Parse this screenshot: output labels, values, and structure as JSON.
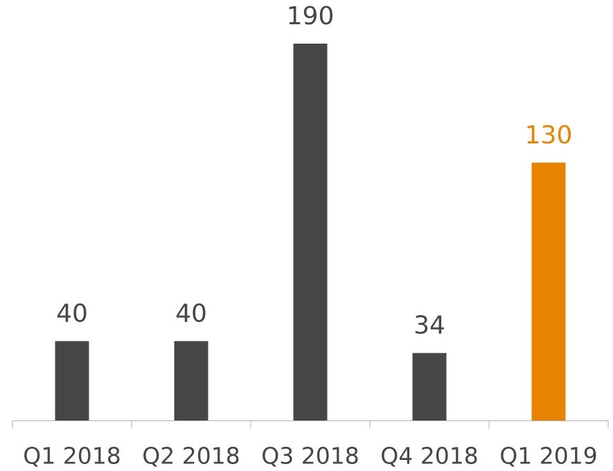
{
  "chart_data": {
    "type": "bar",
    "categories": [
      "Q1 2018",
      "Q2 2018",
      "Q3 2018",
      "Q4 2018",
      "Q1 2019"
    ],
    "values": [
      40,
      40,
      190,
      34,
      130
    ],
    "colors": [
      "#454746",
      "#454746",
      "#454746",
      "#454746",
      "#e88300"
    ]
  }
}
